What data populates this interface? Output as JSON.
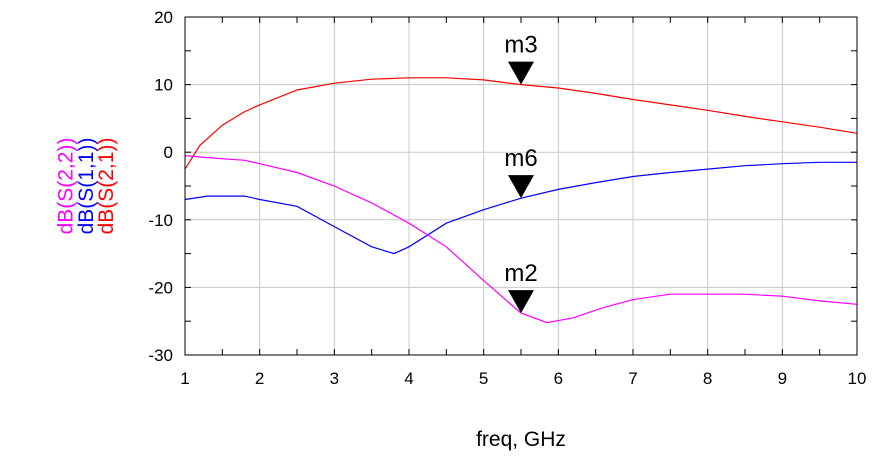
{
  "chart_data": {
    "type": "line",
    "xlabel": "freq, GHz",
    "xlim": [
      1,
      10
    ],
    "ylim": [
      -30,
      20
    ],
    "grid": true,
    "x_ticks": [
      1,
      2,
      3,
      4,
      5,
      6,
      7,
      8,
      9,
      10
    ],
    "y_ticks": [
      20,
      10,
      0,
      -10,
      -20,
      -30
    ],
    "ylabels": [
      {
        "text": "dB(S(2,2))",
        "color": "#ff00ff"
      },
      {
        "text": "dB(S(1,1))",
        "color": "#0000ff"
      },
      {
        "text": "dB(S(2,1))",
        "color": "#ff0000"
      }
    ],
    "series": [
      {
        "name": "dB(S(2,1))",
        "color": "#ff0000",
        "x": [
          1,
          1.2,
          1.5,
          1.8,
          2,
          2.5,
          3,
          3.5,
          4,
          4.5,
          5,
          5.5,
          6,
          6.5,
          7,
          7.5,
          8,
          8.5,
          9,
          9.5,
          10
        ],
        "y": [
          -2.5,
          1,
          4,
          6,
          7,
          9.2,
          10.2,
          10.8,
          11,
          11,
          10.7,
          10,
          9.5,
          8.7,
          7.8,
          7,
          6.2,
          5.3,
          4.5,
          3.7,
          2.8
        ]
      },
      {
        "name": "dB(S(1,1))",
        "color": "#0000ff",
        "x": [
          1,
          1.3,
          1.8,
          2,
          2.5,
          3,
          3.5,
          3.8,
          4,
          4.5,
          5,
          5.5,
          6,
          6.5,
          7,
          7.5,
          8,
          8.5,
          9,
          9.5,
          10
        ],
        "y": [
          -7,
          -6.5,
          -6.5,
          -7,
          -8,
          -11,
          -14,
          -15,
          -14,
          -10.5,
          -8.5,
          -6.8,
          -5.5,
          -4.5,
          -3.6,
          -3,
          -2.5,
          -2,
          -1.7,
          -1.5,
          -1.5
        ]
      },
      {
        "name": "dB(S(2,2))",
        "color": "#ff00ff",
        "x": [
          1,
          1.3,
          1.8,
          2,
          2.5,
          3,
          3.5,
          4,
          4.5,
          5,
          5.5,
          5.85,
          6.2,
          6.6,
          7,
          7.5,
          8,
          8.5,
          9,
          9.5,
          10
        ],
        "y": [
          -0.5,
          -0.8,
          -1.2,
          -1.7,
          -3,
          -5,
          -7.5,
          -10.5,
          -14,
          -19,
          -23.8,
          -25.2,
          -24.5,
          -23,
          -21.8,
          -21,
          -21,
          -21,
          -21.3,
          -22,
          -22.5
        ]
      }
    ],
    "markers": [
      {
        "label": "m3",
        "x": 5.5,
        "y": 10
      },
      {
        "label": "m6",
        "x": 5.5,
        "y": -6.8
      },
      {
        "label": "m2",
        "x": 5.5,
        "y": -23.8
      }
    ]
  }
}
